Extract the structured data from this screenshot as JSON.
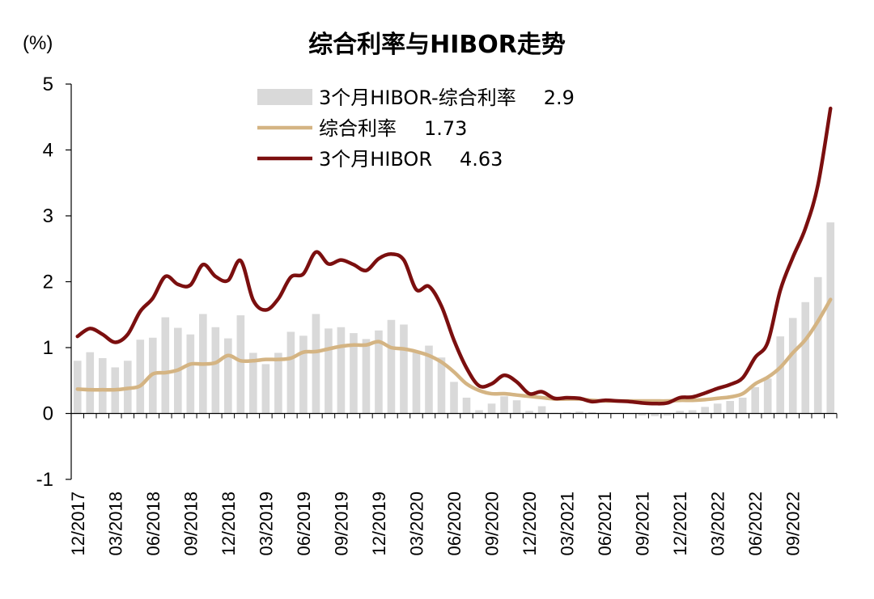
{
  "chart_data": {
    "type": "bar",
    "title": "综合利率与HIBOR走势",
    "ylabel": "(%)",
    "xlabel": "",
    "ylim": [
      -1,
      5
    ],
    "yticks": [
      "5",
      "4",
      "3",
      "2",
      "1",
      "0",
      "-1"
    ],
    "xtick_labels": [
      "12/2017",
      "03/2018",
      "06/2018",
      "09/2018",
      "12/2018",
      "03/2019",
      "06/2019",
      "09/2019",
      "12/2019",
      "03/2020",
      "06/2020",
      "09/2020",
      "12/2020",
      "03/2021",
      "06/2021",
      "09/2021",
      "12/2021",
      "03/2022",
      "06/2022",
      "09/2022"
    ],
    "grid": false,
    "legend_position": "top",
    "colors": {
      "bar": "#d9d9d9",
      "composite": "#d4b483",
      "hibor": "#7b0f0f"
    },
    "categories": [
      "12/2017",
      "01/2018",
      "02/2018",
      "03/2018",
      "04/2018",
      "05/2018",
      "06/2018",
      "07/2018",
      "08/2018",
      "09/2018",
      "10/2018",
      "11/2018",
      "12/2018",
      "01/2019",
      "02/2019",
      "03/2019",
      "04/2019",
      "05/2019",
      "06/2019",
      "07/2019",
      "08/2019",
      "09/2019",
      "10/2019",
      "11/2019",
      "12/2019",
      "01/2020",
      "02/2020",
      "03/2020",
      "04/2020",
      "05/2020",
      "06/2020",
      "07/2020",
      "08/2020",
      "09/2020",
      "10/2020",
      "11/2020",
      "12/2020",
      "01/2021",
      "02/2021",
      "03/2021",
      "04/2021",
      "05/2021",
      "06/2021",
      "07/2021",
      "08/2021",
      "09/2021",
      "10/2021",
      "11/2021",
      "12/2021",
      "01/2022",
      "02/2022",
      "03/2022",
      "04/2022",
      "05/2022",
      "06/2022",
      "07/2022",
      "08/2022",
      "09/2022",
      "10/2022",
      "11/2022",
      "12/2022"
    ],
    "series": [
      {
        "name": "3个月HIBOR-综合利率",
        "legend_value": "2.9",
        "kind": "bar",
        "values": [
          0.8,
          0.93,
          0.84,
          0.7,
          0.8,
          1.12,
          1.15,
          1.46,
          1.3,
          1.2,
          1.51,
          1.31,
          1.14,
          1.49,
          0.92,
          0.75,
          0.92,
          1.24,
          1.18,
          1.51,
          1.29,
          1.31,
          1.22,
          1.13,
          1.26,
          1.42,
          1.35,
          0.94,
          1.03,
          0.85,
          0.48,
          0.24,
          0.05,
          0.15,
          0.26,
          0.2,
          0.04,
          0.11,
          0.01,
          0.02,
          0.03,
          0.02,
          0.01,
          0.0,
          -0.01,
          -0.03,
          -0.04,
          -0.03,
          0.04,
          0.05,
          0.1,
          0.15,
          0.19,
          0.24,
          0.4,
          0.53,
          1.17,
          1.45,
          1.69,
          2.07,
          2.9
        ]
      },
      {
        "name": "综合利率",
        "legend_value": "1.73",
        "kind": "line",
        "values": [
          0.37,
          0.36,
          0.36,
          0.36,
          0.38,
          0.42,
          0.6,
          0.62,
          0.66,
          0.75,
          0.75,
          0.77,
          0.88,
          0.8,
          0.8,
          0.82,
          0.82,
          0.84,
          0.93,
          0.94,
          0.98,
          1.02,
          1.04,
          1.04,
          1.09,
          1.0,
          0.98,
          0.94,
          0.88,
          0.78,
          0.63,
          0.45,
          0.35,
          0.3,
          0.3,
          0.28,
          0.26,
          0.24,
          0.22,
          0.22,
          0.22,
          0.2,
          0.19,
          0.19,
          0.19,
          0.19,
          0.19,
          0.19,
          0.2,
          0.2,
          0.21,
          0.23,
          0.25,
          0.3,
          0.45,
          0.55,
          0.7,
          0.92,
          1.12,
          1.4,
          1.73
        ]
      },
      {
        "name": "3个月HIBOR",
        "legend_value": "4.63",
        "kind": "line",
        "values": [
          1.17,
          1.29,
          1.2,
          1.08,
          1.2,
          1.55,
          1.75,
          2.08,
          1.96,
          1.95,
          2.26,
          2.08,
          2.02,
          2.32,
          1.72,
          1.57,
          1.74,
          2.07,
          2.12,
          2.45,
          2.27,
          2.33,
          2.26,
          2.17,
          2.35,
          2.42,
          2.33,
          1.88,
          1.93,
          1.63,
          1.11,
          0.69,
          0.42,
          0.45,
          0.58,
          0.48,
          0.3,
          0.33,
          0.23,
          0.24,
          0.23,
          0.18,
          0.2,
          0.19,
          0.18,
          0.16,
          0.15,
          0.16,
          0.24,
          0.25,
          0.31,
          0.38,
          0.44,
          0.54,
          0.85,
          1.08,
          1.87,
          2.37,
          2.81,
          3.47,
          4.63
        ]
      }
    ]
  }
}
